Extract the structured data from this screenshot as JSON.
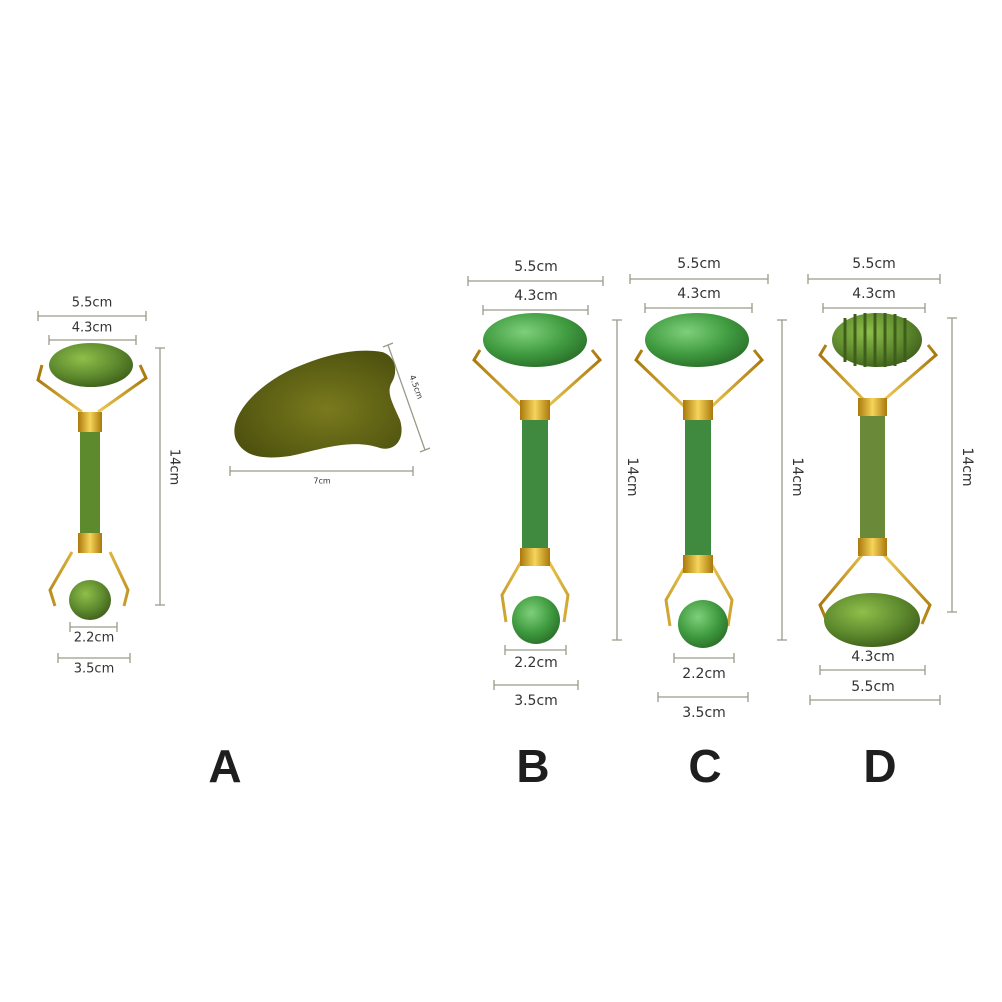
{
  "colors": {
    "jade": "#5e8a2e",
    "jade_dark": "#4a6a1e",
    "gold": "#d4a21c",
    "guasha": "#5a5e14",
    "dim_line": "#9a9a8a"
  },
  "products": [
    {
      "letter": "A",
      "dims": {
        "top_outer": "5.5cm",
        "top_inner": "4.3cm",
        "length": "14cm",
        "bottom_inner": "2.2cm",
        "bottom_outer": "3.5cm"
      },
      "guasha": {
        "width": "7cm",
        "height": "4.5cm"
      }
    },
    {
      "letter": "B",
      "dims": {
        "top_outer": "5.5cm",
        "top_inner": "4.3cm",
        "length": "14cm",
        "bottom_inner": "2.2cm",
        "bottom_outer": "3.5cm"
      }
    },
    {
      "letter": "C",
      "dims": {
        "top_outer": "5.5cm",
        "top_inner": "4.3cm",
        "length": "14cm",
        "bottom_inner": "2.2cm",
        "bottom_outer": "3.5cm"
      }
    },
    {
      "letter": "D",
      "dims": {
        "top_outer": "5.5cm",
        "top_inner": "4.3cm",
        "length": "14cm",
        "bottom_inner": "4.3cm",
        "bottom_outer": "5.5cm"
      }
    }
  ]
}
